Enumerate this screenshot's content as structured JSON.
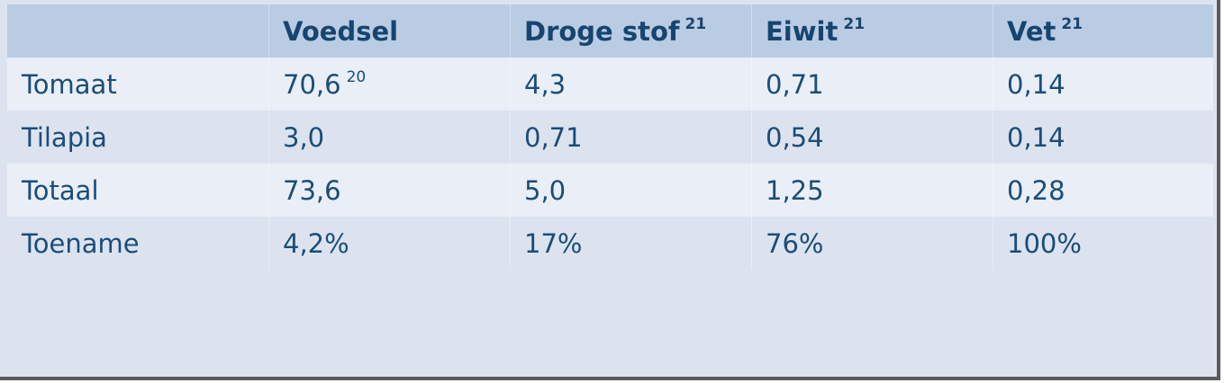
{
  "table": {
    "headers": [
      {
        "label": "",
        "sup": ""
      },
      {
        "label": "Voedsel",
        "sup": ""
      },
      {
        "label": "Droge stof",
        "sup": "21"
      },
      {
        "label": "Eiwit",
        "sup": "21"
      },
      {
        "label": "Vet",
        "sup": "21"
      }
    ],
    "rows": [
      {
        "label": "Tomaat",
        "cells": [
          {
            "value": "70,6",
            "sup": "20"
          },
          {
            "value": "4,3",
            "sup": ""
          },
          {
            "value": "0,71",
            "sup": ""
          },
          {
            "value": "0,14",
            "sup": ""
          }
        ]
      },
      {
        "label": "Tilapia",
        "cells": [
          {
            "value": "3,0",
            "sup": ""
          },
          {
            "value": "0,71",
            "sup": ""
          },
          {
            "value": "0,54",
            "sup": ""
          },
          {
            "value": "0,14",
            "sup": ""
          }
        ]
      },
      {
        "label": "Totaal",
        "cells": [
          {
            "value": "73,6",
            "sup": ""
          },
          {
            "value": "5,0",
            "sup": ""
          },
          {
            "value": "1,25",
            "sup": ""
          },
          {
            "value": "0,28",
            "sup": ""
          }
        ]
      },
      {
        "label": "Toename",
        "cells": [
          {
            "value": "4,2%",
            "sup": ""
          },
          {
            "value": "17%",
            "sup": ""
          },
          {
            "value": "76%",
            "sup": ""
          },
          {
            "value": "100%",
            "sup": ""
          }
        ]
      }
    ]
  }
}
